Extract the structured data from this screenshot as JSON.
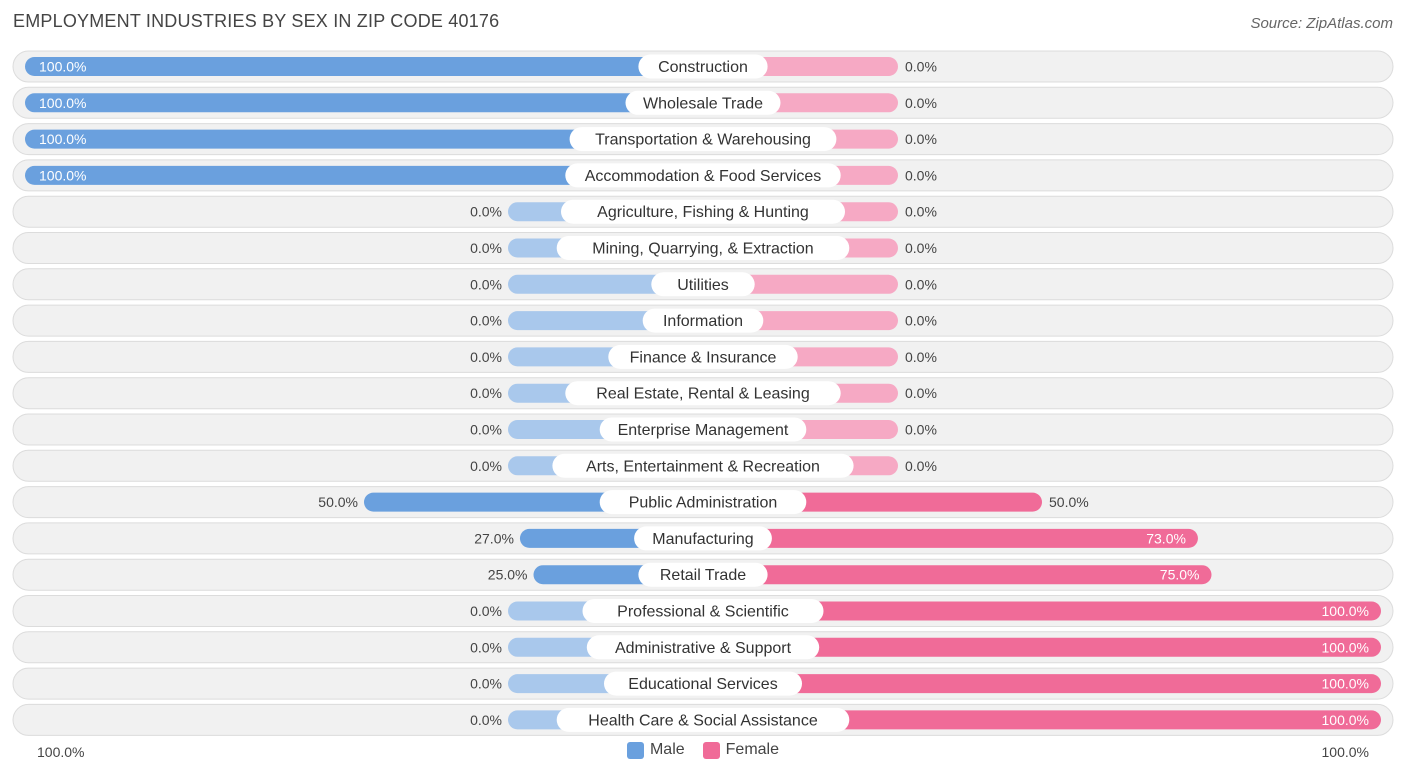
{
  "header": {
    "title": "EMPLOYMENT INDUSTRIES BY SEX IN ZIP CODE 40176",
    "source": "Source: ZipAtlas.com"
  },
  "legend": {
    "male_label": "Male",
    "female_label": "Female"
  },
  "axis": {
    "left_label": "100.0%",
    "right_label": "100.0%"
  },
  "colors": {
    "male_full": "#6aa0de",
    "male_light": "#a9c8ec",
    "female_full": "#f06b98",
    "female_light": "#f6a9c4",
    "row_bg": "#f1f1f1",
    "row_border": "#dcdcdc"
  },
  "chart_data": {
    "type": "bar",
    "orientation": "horizontal-diverging",
    "title": "EMPLOYMENT INDUSTRIES BY SEX IN ZIP CODE 40176",
    "xlim": [
      -100,
      100
    ],
    "legend_position": "bottom-center",
    "categories": [
      "Construction",
      "Wholesale Trade",
      "Transportation & Warehousing",
      "Accommodation & Food Services",
      "Agriculture, Fishing & Hunting",
      "Mining, Quarrying, & Extraction",
      "Utilities",
      "Information",
      "Finance & Insurance",
      "Real Estate, Rental & Leasing",
      "Enterprise Management",
      "Arts, Entertainment & Recreation",
      "Public Administration",
      "Manufacturing",
      "Retail Trade",
      "Professional & Scientific",
      "Administrative & Support",
      "Educational Services",
      "Health Care & Social Assistance"
    ],
    "series": [
      {
        "name": "Male",
        "values": [
          100,
          100,
          100,
          100,
          0,
          0,
          0,
          0,
          0,
          0,
          0,
          0,
          50,
          27,
          25,
          0,
          0,
          0,
          0
        ],
        "labels": [
          "100.0%",
          "100.0%",
          "100.0%",
          "100.0%",
          "0.0%",
          "0.0%",
          "0.0%",
          "0.0%",
          "0.0%",
          "0.0%",
          "0.0%",
          "0.0%",
          "50.0%",
          "27.0%",
          "25.0%",
          "0.0%",
          "0.0%",
          "0.0%",
          "0.0%"
        ]
      },
      {
        "name": "Female",
        "values": [
          0,
          0,
          0,
          0,
          0,
          0,
          0,
          0,
          0,
          0,
          0,
          0,
          50,
          73,
          75,
          100,
          100,
          100,
          100
        ],
        "labels": [
          "0.0%",
          "0.0%",
          "0.0%",
          "0.0%",
          "0.0%",
          "0.0%",
          "0.0%",
          "0.0%",
          "0.0%",
          "0.0%",
          "0.0%",
          "0.0%",
          "50.0%",
          "73.0%",
          "75.0%",
          "100.0%",
          "100.0%",
          "100.0%",
          "100.0%"
        ]
      }
    ]
  }
}
